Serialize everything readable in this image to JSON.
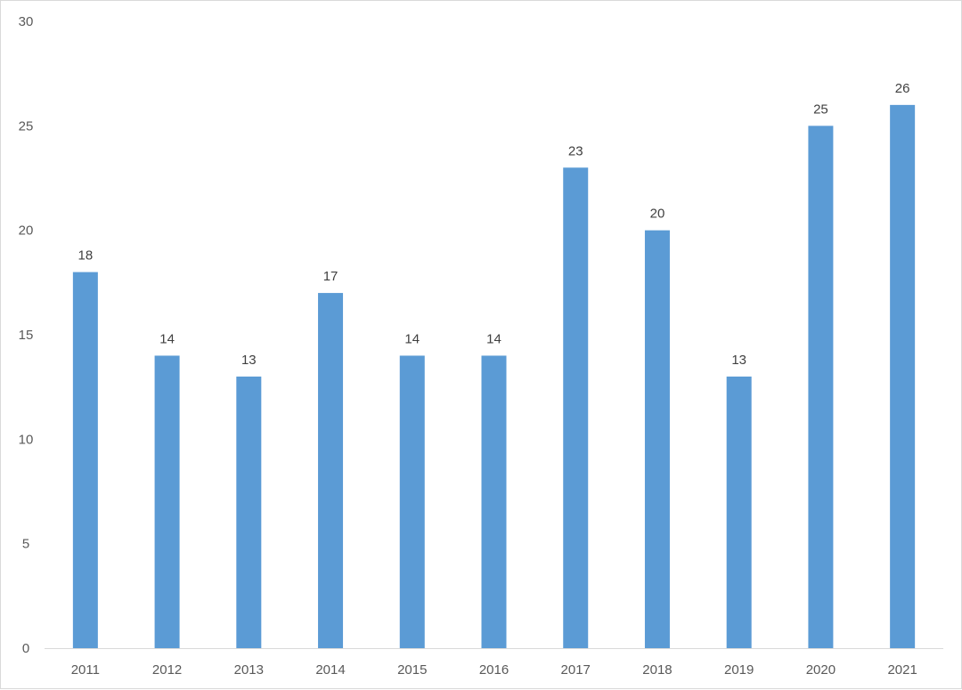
{
  "chart_data": {
    "type": "bar",
    "categories": [
      "2011",
      "2012",
      "2013",
      "2014",
      "2015",
      "2016",
      "2017",
      "2018",
      "2019",
      "2020",
      "2021"
    ],
    "values": [
      18,
      14,
      13,
      17,
      14,
      14,
      23,
      20,
      13,
      25,
      26
    ],
    "title": "",
    "xlabel": "",
    "ylabel": "",
    "ylim": [
      0,
      30
    ],
    "yticks": [
      0,
      5,
      10,
      15,
      20,
      25,
      30
    ],
    "grid": false,
    "legend": "none",
    "data_labels": true,
    "bar_color": "#5b9bd5",
    "axis_color": "#d9d9d9"
  }
}
